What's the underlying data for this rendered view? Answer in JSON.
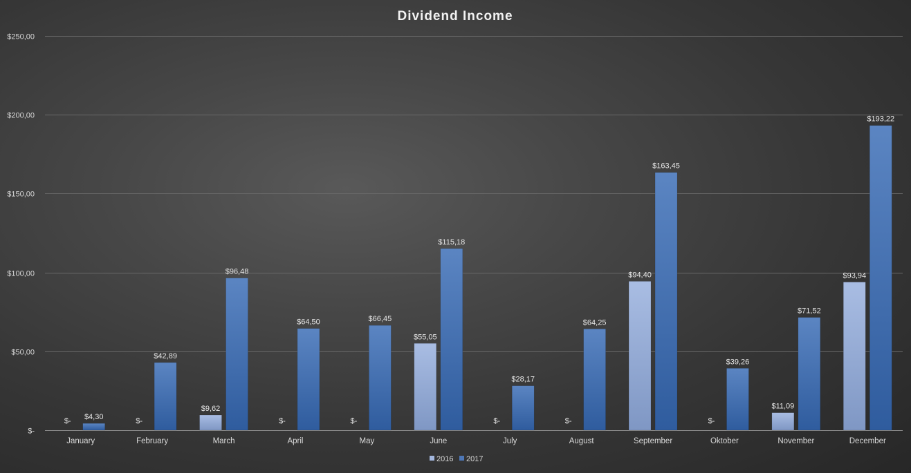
{
  "chart_data": {
    "type": "bar",
    "title": "Dividend Income",
    "xlabel": "",
    "ylabel": "",
    "categories": [
      "January",
      "February",
      "March",
      "April",
      "May",
      "June",
      "July",
      "August",
      "September",
      "Oktober",
      "November",
      "December"
    ],
    "series": [
      {
        "name": "2016",
        "color": "#a3b7de",
        "values": [
          0,
          0,
          9.62,
          0,
          0,
          55.05,
          0,
          0,
          94.4,
          0,
          11.09,
          93.94
        ],
        "labels": [
          "$-",
          "$-",
          "$9,62",
          "$-",
          "$-",
          "$55,05",
          "$-",
          "$-",
          "$94,40",
          "$-",
          "$11,09",
          "$93,94"
        ]
      },
      {
        "name": "2017",
        "color": "#4e77b6",
        "values": [
          4.3,
          42.89,
          96.48,
          64.5,
          66.45,
          115.18,
          28.17,
          64.25,
          163.45,
          39.26,
          71.52,
          193.22
        ],
        "labels": [
          "$4,30",
          "$42,89",
          "$96,48",
          "$64,50",
          "$66,45",
          "$115,18",
          "$28,17",
          "$64,25",
          "$163,45",
          "$39,26",
          "$71,52",
          "$193,22"
        ]
      }
    ],
    "ylim": [
      0,
      250
    ],
    "yticks": [
      0,
      50,
      100,
      150,
      200,
      250
    ],
    "ytick_labels": [
      "$-",
      "$50,00",
      "$100,00",
      "$150,00",
      "$200,00",
      "$250,00"
    ],
    "grid": true,
    "legend_position": "bottom"
  }
}
